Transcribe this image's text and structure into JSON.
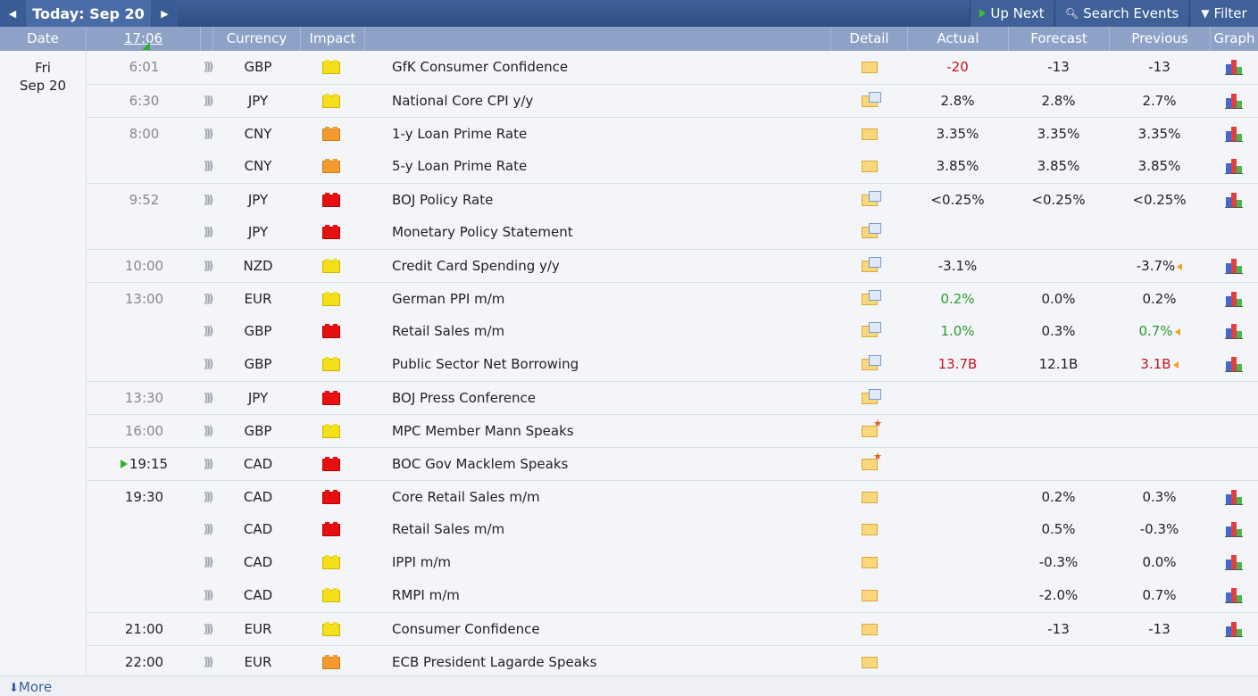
{
  "toolbar": {
    "prev_glyph": "◀",
    "next_glyph": "▶",
    "today_label": "Today: Sep 20",
    "upnext_label": "Up Next",
    "search_label": "Search Events",
    "filter_label": "Filter"
  },
  "columns": {
    "date": "Date",
    "time": "17:06",
    "currency": "Currency",
    "impact": "Impact",
    "detail": "Detail",
    "actual": "Actual",
    "forecast": "Forecast",
    "previous": "Previous",
    "graph": "Graph"
  },
  "date": {
    "day": "Fri",
    "date": "Sep 20"
  },
  "colors": {
    "high": "#e61010",
    "medium": "#f29a2e",
    "low": "#f3e01b",
    "accent": "#3f6198",
    "better": "#2b9a2b",
    "worse": "#c4121f"
  },
  "events": [
    {
      "time": "6:01",
      "currency": "GBP",
      "impact": "low",
      "title": "GfK Consumer Confidence",
      "detail": "folder",
      "actual": "-20",
      "actual_tone": "worse",
      "forecast": "-13",
      "previous": "-13",
      "graph": true,
      "sep": false
    },
    {
      "time": "6:30",
      "currency": "JPY",
      "impact": "low",
      "title": "National Core CPI y/y",
      "detail": "doc",
      "actual": "2.8%",
      "forecast": "2.8%",
      "previous": "2.7%",
      "graph": true,
      "sep": true
    },
    {
      "time": "8:00",
      "currency": "CNY",
      "impact": "medium",
      "title": "1-y Loan Prime Rate",
      "detail": "folder",
      "actual": "3.35%",
      "forecast": "3.35%",
      "previous": "3.35%",
      "graph": true,
      "sep": true
    },
    {
      "time": "",
      "currency": "CNY",
      "impact": "medium",
      "title": "5-y Loan Prime Rate",
      "detail": "folder",
      "actual": "3.85%",
      "forecast": "3.85%",
      "previous": "3.85%",
      "graph": true,
      "sep": false
    },
    {
      "time": "9:52",
      "currency": "JPY",
      "impact": "high",
      "title": "BOJ Policy Rate",
      "detail": "doc",
      "actual": "<0.25%",
      "forecast": "<0.25%",
      "previous": "<0.25%",
      "graph": true,
      "sep": true
    },
    {
      "time": "",
      "currency": "JPY",
      "impact": "high",
      "title": "Monetary Policy Statement",
      "detail": "doc",
      "actual": "",
      "forecast": "",
      "previous": "",
      "graph": false,
      "sep": false
    },
    {
      "time": "10:00",
      "currency": "NZD",
      "impact": "low",
      "title": "Credit Card Spending y/y",
      "detail": "doc",
      "actual": "-3.1%",
      "forecast": "",
      "previous": "-3.7%",
      "revised": true,
      "graph": true,
      "sep": true
    },
    {
      "time": "13:00",
      "currency": "EUR",
      "impact": "low",
      "title": "German PPI m/m",
      "detail": "doc",
      "actual": "0.2%",
      "actual_tone": "better",
      "forecast": "0.0%",
      "previous": "0.2%",
      "graph": true,
      "sep": true
    },
    {
      "time": "",
      "currency": "GBP",
      "impact": "high",
      "title": "Retail Sales m/m",
      "detail": "doc",
      "actual": "1.0%",
      "actual_tone": "better",
      "forecast": "0.3%",
      "previous": "0.7%",
      "previous_tone": "better",
      "revised": true,
      "graph": true,
      "sep": false
    },
    {
      "time": "",
      "currency": "GBP",
      "impact": "low",
      "title": "Public Sector Net Borrowing",
      "detail": "doc",
      "actual": "13.7B",
      "actual_tone": "worse",
      "forecast": "12.1B",
      "previous": "3.1B",
      "previous_tone": "worse",
      "revised": true,
      "graph": true,
      "sep": false
    },
    {
      "time": "13:30",
      "currency": "JPY",
      "impact": "high",
      "title": "BOJ Press Conference",
      "detail": "doc",
      "actual": "",
      "forecast": "",
      "previous": "",
      "graph": false,
      "sep": true
    },
    {
      "time": "16:00",
      "currency": "GBP",
      "impact": "low",
      "title": "MPC Member Mann Speaks",
      "detail": "star",
      "actual": "",
      "forecast": "",
      "previous": "",
      "graph": false,
      "sep": true
    },
    {
      "time": "19:15",
      "currency": "CAD",
      "impact": "high",
      "title": "BOC Gov Macklem Speaks",
      "detail": "star",
      "actual": "",
      "forecast": "",
      "previous": "",
      "graph": false,
      "sep": true,
      "now": true
    },
    {
      "time": "19:30",
      "currency": "CAD",
      "impact": "high",
      "title": "Core Retail Sales m/m",
      "detail": "folder",
      "actual": "",
      "forecast": "0.2%",
      "previous": "0.3%",
      "graph": true,
      "sep": true,
      "dark": true
    },
    {
      "time": "",
      "currency": "CAD",
      "impact": "high",
      "title": "Retail Sales m/m",
      "detail": "folder",
      "actual": "",
      "forecast": "0.5%",
      "previous": "-0.3%",
      "graph": true,
      "sep": false
    },
    {
      "time": "",
      "currency": "CAD",
      "impact": "low",
      "title": "IPPI m/m",
      "detail": "folder",
      "actual": "",
      "forecast": "-0.3%",
      "previous": "0.0%",
      "graph": true,
      "sep": false
    },
    {
      "time": "",
      "currency": "CAD",
      "impact": "low",
      "title": "RMPI m/m",
      "detail": "folder",
      "actual": "",
      "forecast": "-2.0%",
      "previous": "0.7%",
      "graph": true,
      "sep": false
    },
    {
      "time": "21:00",
      "currency": "EUR",
      "impact": "low",
      "title": "Consumer Confidence",
      "detail": "folder",
      "actual": "",
      "forecast": "-13",
      "previous": "-13",
      "graph": true,
      "sep": true,
      "dark": true
    },
    {
      "time": "22:00",
      "currency": "EUR",
      "impact": "medium",
      "title": "ECB President Lagarde Speaks",
      "detail": "folder",
      "actual": "",
      "forecast": "",
      "previous": "",
      "graph": false,
      "sep": true,
      "dark": true
    }
  ],
  "footer": {
    "more_label": "More",
    "more_icon": "download-arrow-icon"
  }
}
